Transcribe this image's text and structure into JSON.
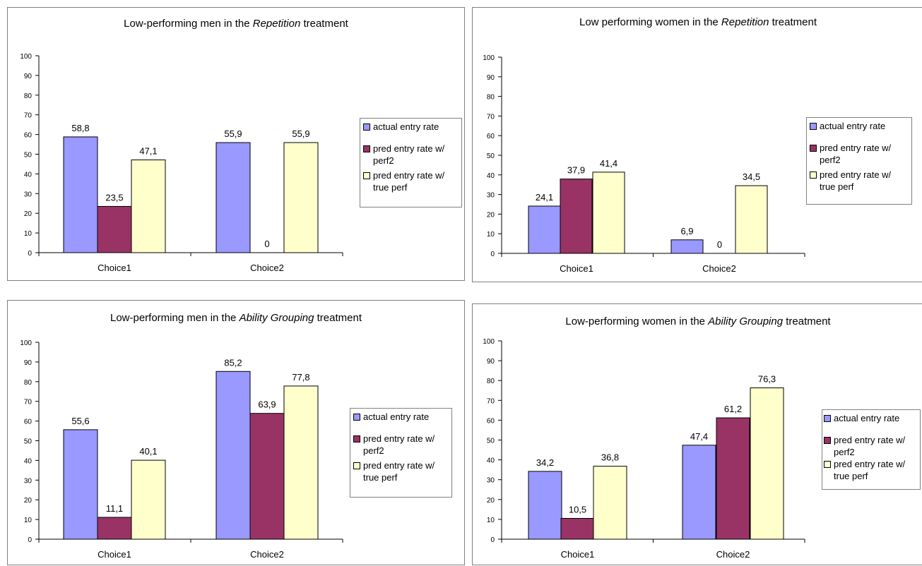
{
  "colors": {
    "actual": "#9999ff",
    "perf2": "#993366",
    "true_perf": "#ffffcc"
  },
  "legend_labels": [
    "actual entry rate",
    "pred entry rate w/ perf2",
    "pred entry rate w/ true perf"
  ],
  "chart_data": [
    {
      "type": "bar",
      "title": {
        "before": "Low-performing men in the ",
        "em": "Repetition",
        "after": " treatment"
      },
      "categories": [
        "Choice1",
        "Choice2"
      ],
      "series": [
        {
          "name": "actual entry rate",
          "values": [
            58.8,
            55.9
          ],
          "labels": [
            "58,8",
            "55,9"
          ]
        },
        {
          "name": "pred entry rate w/ perf2",
          "values": [
            23.5,
            0
          ],
          "labels": [
            "23,5",
            "0"
          ]
        },
        {
          "name": "pred entry rate w/ true perf",
          "values": [
            47.1,
            55.9
          ],
          "labels": [
            "47,1",
            "55,9"
          ]
        }
      ],
      "ylim": [
        0,
        100
      ],
      "yticks": [
        0,
        10,
        20,
        30,
        40,
        50,
        60,
        70,
        80,
        90,
        100
      ],
      "grid": false,
      "legend": "right"
    },
    {
      "type": "bar",
      "title": {
        "before": "Low performing women in the ",
        "em": "Repetition",
        "after": " treatment"
      },
      "categories": [
        "Choice1",
        "Choice2"
      ],
      "series": [
        {
          "name": "actual entry rate",
          "values": [
            24.1,
            6.9
          ],
          "labels": [
            "24,1",
            "6,9"
          ]
        },
        {
          "name": "pred entry rate w/ perf2",
          "values": [
            37.9,
            0
          ],
          "labels": [
            "37,9",
            "0"
          ]
        },
        {
          "name": "pred entry rate w/ true perf",
          "values": [
            41.4,
            34.5
          ],
          "labels": [
            "41,4",
            "34,5"
          ]
        }
      ],
      "ylim": [
        0,
        100
      ],
      "yticks": [
        0,
        10,
        20,
        30,
        40,
        50,
        60,
        70,
        80,
        90,
        100
      ],
      "grid": false,
      "legend": "right"
    },
    {
      "type": "bar",
      "title": {
        "before": "Low-performing men in the ",
        "em": "Ability Grouping",
        "after": " treatment"
      },
      "categories": [
        "Choice1",
        "Choice2"
      ],
      "series": [
        {
          "name": "actual entry rate",
          "values": [
            55.6,
            85.2
          ],
          "labels": [
            "55,6",
            "85,2"
          ]
        },
        {
          "name": "pred entry rate w/ perf2",
          "values": [
            11.1,
            63.9
          ],
          "labels": [
            "11,1",
            "63,9"
          ]
        },
        {
          "name": "pred entry rate w/ true perf",
          "values": [
            40.1,
            77.8
          ],
          "labels": [
            "40,1",
            "77,8"
          ]
        }
      ],
      "ylim": [
        0,
        100
      ],
      "yticks": [
        0,
        10,
        20,
        30,
        40,
        50,
        60,
        70,
        80,
        90,
        100
      ],
      "grid": false,
      "legend": "right"
    },
    {
      "type": "bar",
      "title": {
        "before": "Low-performing women in the ",
        "em": "Ability Grouping",
        "after": " treatment"
      },
      "categories": [
        "Choice1",
        "Choice2"
      ],
      "series": [
        {
          "name": "actual entry rate",
          "values": [
            34.2,
            47.4
          ],
          "labels": [
            "34,2",
            "47,4"
          ]
        },
        {
          "name": "pred entry rate w/ perf2",
          "values": [
            10.5,
            61.2
          ],
          "labels": [
            "10,5",
            "61,2"
          ]
        },
        {
          "name": "pred entry rate w/ true perf",
          "values": [
            36.8,
            76.3
          ],
          "labels": [
            "36,8",
            "76,3"
          ]
        }
      ],
      "ylim": [
        0,
        100
      ],
      "yticks": [
        0,
        10,
        20,
        30,
        40,
        50,
        60,
        70,
        80,
        90,
        100
      ],
      "grid": false,
      "legend": "right"
    }
  ]
}
